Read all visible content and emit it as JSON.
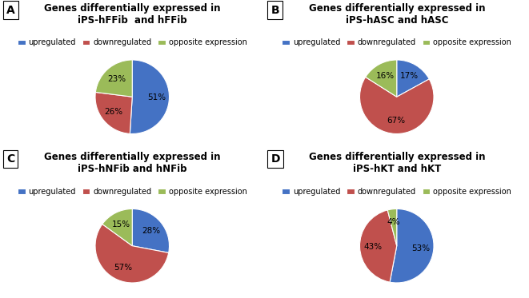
{
  "chart_data": [
    {
      "type": "pie",
      "annotation": "A",
      "title": "Genes differentially expressed in\niPS-hFFib  and hFFib",
      "categories": [
        "upregulated",
        "downregulated",
        "opposite expression"
      ],
      "values": [
        51,
        26,
        23
      ],
      "value_labels": [
        "51%",
        "26%",
        "23%"
      ],
      "colors": [
        "#4472C4",
        "#C0504D",
        "#9BBB59"
      ],
      "data_labels": true,
      "legend": "lower center"
    },
    {
      "type": "pie",
      "annotation": "B",
      "title": "Genes differentially expressed in\niPS-hASC and hASC",
      "categories": [
        "upregulated",
        "downregulated",
        "opposite expression"
      ],
      "values": [
        17,
        67,
        16
      ],
      "value_labels": [
        "17%",
        "67%",
        "16%"
      ],
      "colors": [
        "#4472C4",
        "#C0504D",
        "#9BBB59"
      ],
      "data_labels": true,
      "legend": "lower center"
    },
    {
      "type": "pie",
      "annotation": "C",
      "title": "Genes differentially expressed in\niPS-hNFib and hNFib",
      "categories": [
        "upregulated",
        "downregulated",
        "opposite expression"
      ],
      "values": [
        28,
        57,
        15
      ],
      "value_labels": [
        "28%",
        "57%",
        "15%"
      ],
      "colors": [
        "#4472C4",
        "#C0504D",
        "#9BBB59"
      ],
      "data_labels": true,
      "legend": "lower center"
    },
    {
      "type": "pie",
      "annotation": "D",
      "title": "Genes differentially expressed in\niPS-hKT and hKT",
      "categories": [
        "upregulated",
        "downregulated",
        "opposite expression"
      ],
      "values": [
        53,
        43,
        4
      ],
      "value_labels": [
        "53%",
        "43%",
        "4%"
      ],
      "colors": [
        "#4472C4",
        "#C0504D",
        "#9BBB59"
      ],
      "data_labels": true,
      "legend": "lower center"
    }
  ]
}
